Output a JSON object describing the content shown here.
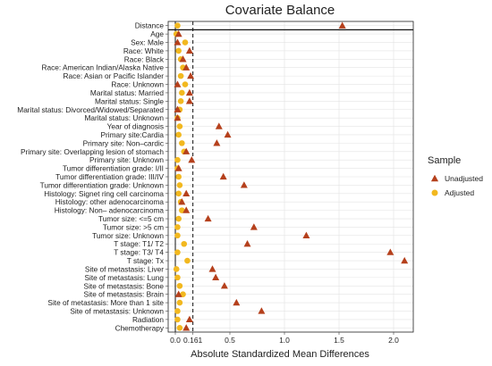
{
  "chart_data": {
    "type": "scatter",
    "title": "Covariate Balance",
    "xlabel": "Absolute Standardized Mean Differences",
    "x_ticks": [
      {
        "value": 0.0,
        "label": "0.0"
      },
      {
        "value": 0.161,
        "label": "0.161"
      },
      {
        "value": 0.5,
        "label": "0.5"
      },
      {
        "value": 1.0,
        "label": "1.0"
      },
      {
        "value": 1.5,
        "label": "1.5"
      },
      {
        "value": 2.0,
        "label": "2.0"
      }
    ],
    "xlim": [
      -0.04,
      2.18
    ],
    "threshold": 0.161,
    "legend": {
      "title": "Sample",
      "placement": "right",
      "entries": [
        {
          "label": "Unadjusted",
          "marker": "triangle",
          "color": "#b5401c"
        },
        {
          "label": "Adjusted",
          "marker": "circle",
          "color": "#f2b81f"
        }
      ]
    },
    "categories": [
      "Distance",
      "Age",
      "Sex: Male",
      "Race: White",
      "Race: Black",
      "Race: American Indian/Alaska Native",
      "Race: Asian or Pacific Islander",
      "Race: Unknown",
      "Marital status: Married",
      "Marital status: Single",
      "Marital status: Divorced/Widowed/Separated",
      "Marital status: Unknown",
      "Year of diagnosis",
      "Primary site:Cardia",
      "Primary site: Non–cardic",
      "Primary site: Overlapping lesion of stomach",
      "Primary site: Unknown",
      "Tumor differentiation grade: I/II",
      "Tumor differentiation grade: III/IV",
      "Tumor differentiation grade: Unknown",
      "Histology: Signet ring cell carcinoma",
      "Histology: other adenocarcinoma",
      "Histology: Non– adenocarcinoma",
      "Tumor size: <=5 cm",
      "Tumor size: >5 cm",
      "Tumor size: Unknown",
      "T stage: T1/ T2",
      "T stage: T3/ T4",
      "T stage: Tx",
      "Site of metastasis: Liver",
      "Site of metastasis: Lung",
      "Site of metastasis: Bone",
      "Site of metastasis: Brain",
      "Site of metastasis: More than 1 site",
      "Site of metastasis: Unknown",
      "Radiation",
      "Chemotherapy"
    ],
    "series": [
      {
        "name": "Unadjusted",
        "marker": "triangle",
        "color": "#b5401c",
        "values": [
          1.53,
          0.03,
          0.02,
          0.13,
          0.07,
          0.1,
          0.14,
          0.02,
          0.13,
          0.13,
          0.02,
          0.02,
          0.4,
          0.48,
          0.38,
          0.1,
          0.15,
          0.03,
          0.44,
          0.63,
          0.1,
          0.06,
          0.1,
          0.3,
          0.72,
          1.2,
          0.66,
          1.97,
          2.1,
          0.34,
          0.37,
          0.45,
          0.03,
          0.56,
          0.79,
          0.13,
          0.1
        ]
      },
      {
        "name": "Adjusted",
        "marker": "circle",
        "color": "#f2b81f",
        "values": [
          0.02,
          0.01,
          0.09,
          0.03,
          0.05,
          0.07,
          0.05,
          0.09,
          0.06,
          0.05,
          0.04,
          0.02,
          0.04,
          0.03,
          0.06,
          0.08,
          0.02,
          0.02,
          0.03,
          0.04,
          0.03,
          0.05,
          0.06,
          0.03,
          0.02,
          0.02,
          0.08,
          0.02,
          0.11,
          0.01,
          0.02,
          0.04,
          0.07,
          0.04,
          0.02,
          0.02,
          0.04
        ]
      }
    ]
  }
}
